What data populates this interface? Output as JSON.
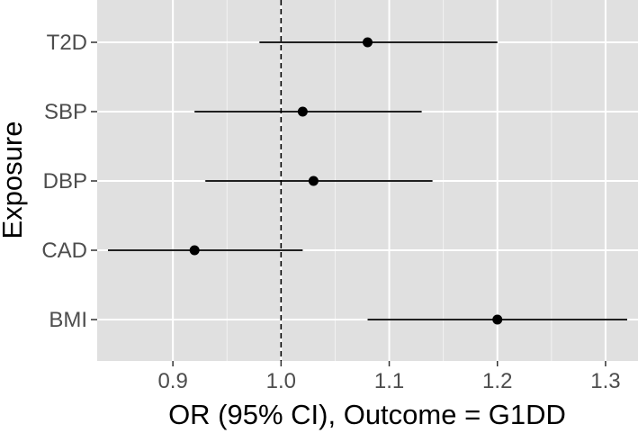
{
  "chart_data": {
    "type": "forest",
    "xlabel": "OR (95% CI), Outcome = G1DD",
    "ylabel": "Exposure",
    "xlim": [
      0.83,
      1.33
    ],
    "xticks": [
      0.9,
      1.0,
      1.1,
      1.2,
      1.3
    ],
    "xtick_labels": [
      "0.9",
      "1.0",
      "1.1",
      "1.2",
      "1.3"
    ],
    "reference_line": 1.0,
    "grid": true,
    "categories": [
      "T2D",
      "SBP",
      "DBP",
      "CAD",
      "BMI"
    ],
    "estimates": [
      {
        "label": "T2D",
        "or": 1.08,
        "lower": 0.98,
        "upper": 1.2
      },
      {
        "label": "SBP",
        "or": 1.02,
        "lower": 0.92,
        "upper": 1.13
      },
      {
        "label": "DBP",
        "or": 1.03,
        "lower": 0.93,
        "upper": 1.14
      },
      {
        "label": "CAD",
        "or": 0.92,
        "lower": 0.84,
        "upper": 1.02
      },
      {
        "label": "BMI",
        "or": 1.2,
        "lower": 1.08,
        "upper": 1.32
      }
    ],
    "colors": {
      "panel": "#e0e0e0",
      "grid": "#ffffff",
      "point": "#000000",
      "text": "#4d4d4d"
    }
  }
}
